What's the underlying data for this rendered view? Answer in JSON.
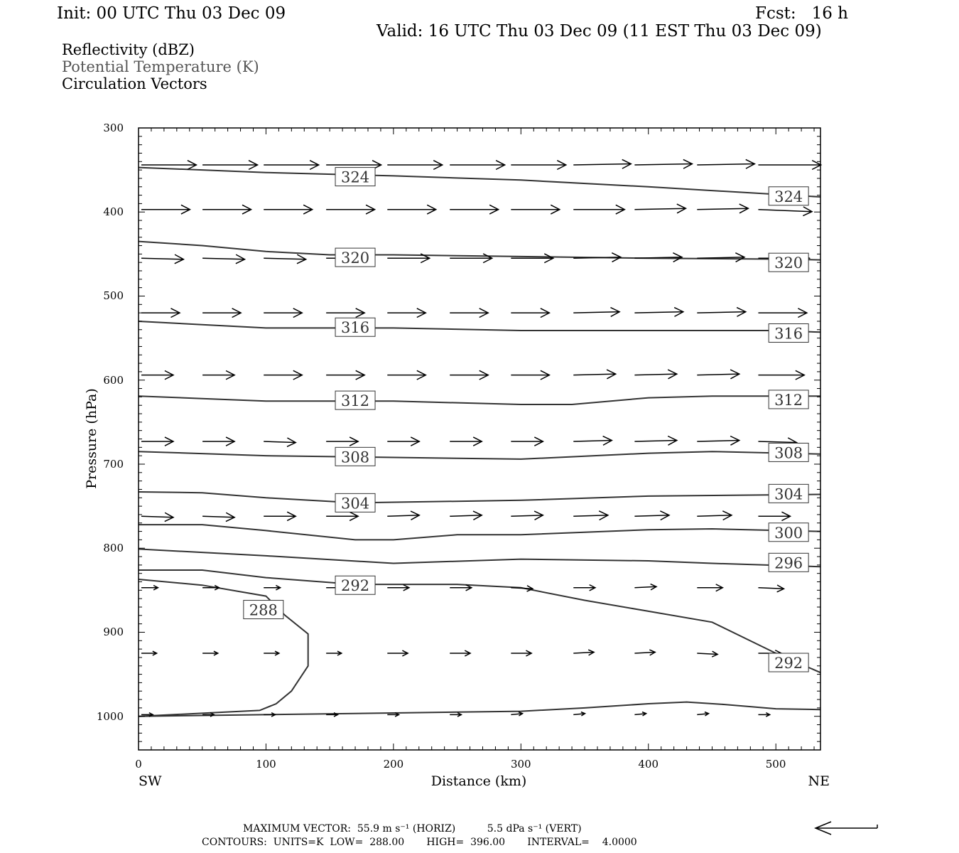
{
  "header": {
    "init": "Init: 00 UTC Thu 03 Dec 09",
    "fcst": "Fcst:   16 h",
    "valid": "Valid: 16 UTC Thu 03 Dec 09 (11 EST Thu 03 Dec 09)"
  },
  "legend": {
    "reflectivity": "Reflectivity (dBZ)",
    "theta": "Potential Temperature (K)",
    "vectors": "Circulation Vectors"
  },
  "footer": {
    "max_vector": "MAXIMUM VECTOR:  55.9 m s⁻¹ (HORIZ)          5.5 dPa s⁻¹ (VERT)",
    "contours": "CONTOURS:  UNITS=K  LOW=  288.00       HIGH=  396.00       INTERVAL=    4.0000"
  },
  "chart_data": {
    "type": "line",
    "xlabel": "Distance (km)",
    "ylabel": "Pressure (hPa)",
    "xlim": [
      0,
      535
    ],
    "ylim": [
      1040,
      300
    ],
    "x_ticks": [
      0,
      100,
      200,
      300,
      400,
      500
    ],
    "y_ticks": [
      300,
      400,
      500,
      600,
      700,
      800,
      900,
      1000
    ],
    "x_end_labels": {
      "left": "SW",
      "right": "NE"
    },
    "contour_units": "K",
    "series": [
      {
        "label": "324",
        "points": [
          [
            0,
            347
          ],
          [
            100,
            353
          ],
          [
            200,
            357
          ],
          [
            300,
            362
          ],
          [
            400,
            370
          ],
          [
            500,
            379
          ],
          [
            535,
            382
          ]
        ],
        "labels_at": [
          [
            170,
            358
          ],
          [
            510,
            381
          ]
        ]
      },
      {
        "label": "320",
        "points": [
          [
            0,
            435
          ],
          [
            50,
            440
          ],
          [
            100,
            447
          ],
          [
            150,
            451
          ],
          [
            200,
            451
          ],
          [
            300,
            453
          ],
          [
            400,
            455
          ],
          [
            500,
            456
          ],
          [
            535,
            457
          ]
        ],
        "labels_at": [
          [
            170,
            454
          ],
          [
            510,
            460
          ]
        ]
      },
      {
        "label": "316",
        "points": [
          [
            0,
            530
          ],
          [
            50,
            534
          ],
          [
            100,
            538
          ],
          [
            200,
            538
          ],
          [
            300,
            541
          ],
          [
            400,
            541
          ],
          [
            500,
            541
          ],
          [
            535,
            543
          ]
        ],
        "labels_at": [
          [
            170,
            537
          ],
          [
            510,
            544
          ]
        ]
      },
      {
        "label": "312",
        "points": [
          [
            0,
            619
          ],
          [
            50,
            622
          ],
          [
            100,
            625
          ],
          [
            200,
            625
          ],
          [
            300,
            629
          ],
          [
            340,
            629
          ],
          [
            400,
            621
          ],
          [
            450,
            619
          ],
          [
            535,
            619
          ]
        ],
        "labels_at": [
          [
            170,
            624
          ],
          [
            510,
            623
          ]
        ]
      },
      {
        "label": "308",
        "points": [
          [
            0,
            685
          ],
          [
            100,
            690
          ],
          [
            200,
            692
          ],
          [
            300,
            694
          ],
          [
            400,
            687
          ],
          [
            450,
            685
          ],
          [
            535,
            688
          ]
        ],
        "labels_at": [
          [
            170,
            691
          ],
          [
            510,
            686
          ]
        ]
      },
      {
        "label": "304",
        "points": [
          [
            0,
            733
          ],
          [
            50,
            734
          ],
          [
            100,
            740
          ],
          [
            170,
            746
          ],
          [
            300,
            743
          ],
          [
            400,
            738
          ],
          [
            535,
            736
          ]
        ],
        "labels_at": [
          [
            170,
            746
          ],
          [
            510,
            735
          ]
        ]
      },
      {
        "label": "300",
        "points": [
          [
            0,
            772
          ],
          [
            50,
            772
          ],
          [
            100,
            779
          ],
          [
            170,
            790
          ],
          [
            200,
            790
          ],
          [
            250,
            784
          ],
          [
            300,
            784
          ],
          [
            400,
            778
          ],
          [
            450,
            777
          ],
          [
            535,
            780
          ]
        ],
        "labels_at": [
          [
            510,
            781
          ]
        ]
      },
      {
        "label": "296",
        "points": [
          [
            0,
            801
          ],
          [
            100,
            809
          ],
          [
            200,
            818
          ],
          [
            300,
            813
          ],
          [
            400,
            815
          ],
          [
            450,
            818
          ],
          [
            535,
            822
          ]
        ],
        "labels_at": [
          [
            510,
            817
          ]
        ]
      },
      {
        "label": "292",
        "points": [
          [
            0,
            826
          ],
          [
            50,
            826
          ],
          [
            100,
            835
          ],
          [
            170,
            843
          ],
          [
            250,
            843
          ],
          [
            300,
            847
          ],
          [
            350,
            862
          ],
          [
            400,
            875
          ],
          [
            450,
            888
          ],
          [
            500,
            925
          ],
          [
            535,
            948
          ]
        ],
        "labels_at": [
          [
            170,
            844
          ],
          [
            510,
            936
          ]
        ]
      },
      {
        "label": "288",
        "points": [
          [
            0,
            837
          ],
          [
            50,
            844
          ],
          [
            100,
            857
          ],
          [
            115,
            880
          ],
          [
            133,
            902
          ],
          [
            133,
            940
          ],
          [
            120,
            970
          ],
          [
            108,
            985
          ],
          [
            95,
            993
          ],
          [
            0,
            1000
          ]
        ],
        "labels_at": [
          [
            98,
            873
          ]
        ]
      },
      {
        "label": "",
        "points": [
          [
            0,
            1000
          ],
          [
            200,
            996
          ],
          [
            300,
            994
          ],
          [
            350,
            990
          ],
          [
            400,
            985
          ],
          [
            430,
            983
          ],
          [
            460,
            986
          ],
          [
            500,
            991
          ],
          [
            535,
            992
          ]
        ],
        "labels_at": []
      }
    ],
    "vector_rows": [
      {
        "pressure": 344,
        "u": [
          43,
          43,
          43,
          43,
          43,
          43,
          43,
          45,
          45,
          45,
          49
        ],
        "w": [
          0,
          0,
          0,
          0,
          0,
          0,
          0,
          -1,
          -1,
          -1,
          0
        ]
      },
      {
        "pressure": 397,
        "u": [
          38,
          38,
          38,
          38,
          38,
          38,
          38,
          40,
          40,
          40,
          42
        ],
        "w": [
          0,
          0,
          0,
          0,
          0,
          0,
          0,
          0,
          -1,
          -1,
          2
        ]
      },
      {
        "pressure": 455,
        "u": [
          33,
          33,
          33,
          33,
          33,
          33,
          33,
          37,
          37,
          37,
          40
        ],
        "w": [
          1,
          1,
          1,
          0,
          0,
          0,
          0,
          -1,
          -1,
          -1,
          0
        ]
      },
      {
        "pressure": 520,
        "u": [
          30,
          30,
          30,
          30,
          30,
          30,
          30,
          36,
          38,
          38,
          38
        ],
        "w": [
          0,
          0,
          0,
          0,
          0,
          0,
          0,
          -1,
          -1,
          -1,
          0
        ]
      },
      {
        "pressure": 594,
        "u": [
          25,
          25,
          30,
          30,
          30,
          30,
          30,
          33,
          33,
          33,
          36
        ],
        "w": [
          0,
          0,
          0,
          0,
          0,
          0,
          0,
          -1,
          -1,
          -1,
          0
        ]
      },
      {
        "pressure": 673,
        "u": [
          25,
          25,
          25,
          25,
          25,
          25,
          25,
          30,
          33,
          33,
          30
        ],
        "w": [
          0,
          0,
          1,
          0,
          0,
          0,
          0,
          -1,
          -1,
          -1,
          1
        ]
      },
      {
        "pressure": 762,
        "u": [
          25,
          25,
          25,
          25,
          25,
          25,
          25,
          27,
          27,
          27,
          25
        ],
        "w": [
          1,
          1,
          0,
          0,
          -1,
          -1,
          -1,
          -1,
          -1,
          -1,
          0
        ]
      },
      {
        "pressure": 847,
        "u": [
          13,
          13,
          13,
          13,
          17,
          17,
          17,
          17,
          17,
          20,
          20
        ],
        "w": [
          0,
          0,
          0,
          0,
          0,
          0,
          1,
          0,
          -1,
          0,
          1
        ]
      },
      {
        "pressure": 925,
        "u": [
          12,
          12,
          12,
          12,
          16,
          16,
          16,
          16,
          16,
          16,
          18
        ],
        "w": [
          0,
          0,
          0,
          0,
          0,
          0,
          0,
          -1,
          -1,
          1,
          0
        ]
      },
      {
        "pressure": 998,
        "u": [
          9,
          9,
          9,
          9,
          9,
          9,
          9,
          9,
          9,
          9,
          9
        ],
        "w": [
          0,
          0,
          0,
          0,
          0,
          0,
          -1,
          -1,
          -1,
          -1,
          0
        ]
      }
    ],
    "vector_columns_km": [
      5,
      53,
      101,
      150,
      198,
      247,
      295,
      344,
      392,
      441,
      489
    ]
  }
}
